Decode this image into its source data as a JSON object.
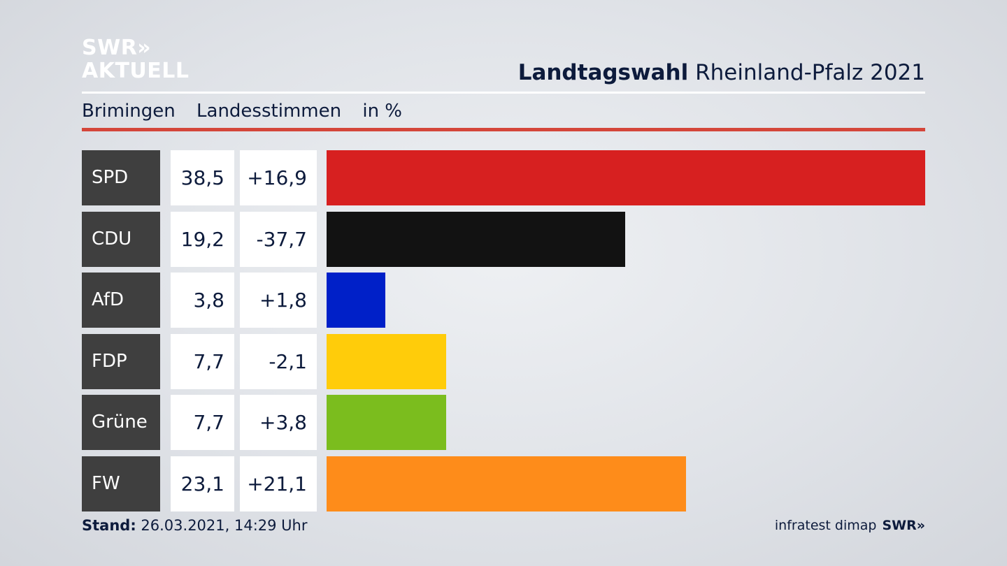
{
  "logo": {
    "line1": "SWR»",
    "line2": "AKTUELL"
  },
  "header": {
    "title_bold": "Landtagswahl",
    "title_rest": " Rheinland-Pfalz 2021"
  },
  "subheader": {
    "place": "Brimingen",
    "type": "Landesstimmen",
    "unit": "in %"
  },
  "chart_data": {
    "type": "bar",
    "orientation": "horizontal",
    "categories": [
      "SPD",
      "CDU",
      "AfD",
      "FDP",
      "Grüne",
      "FW"
    ],
    "series": [
      {
        "name": "",
        "values": [
          38.5,
          19.2,
          3.8,
          7.7,
          7.7,
          23.1
        ]
      }
    ],
    "value_labels": [
      "38,5",
      "19,2",
      "3,8",
      "7,7",
      "7,7",
      "23,1"
    ],
    "diff_labels": [
      "+16,9",
      "-37,7",
      "+1,8",
      "-2,1",
      "+3,8",
      "+21,1"
    ],
    "diffs": [
      16.9,
      -37.7,
      1.8,
      -2.1,
      3.8,
      21.1
    ],
    "colors": [
      "#d72020",
      "#121212",
      "#0020c8",
      "#ffcc0a",
      "#7bbd1e",
      "#fe8c1a"
    ],
    "xlim": [
      0,
      38.5
    ],
    "grid": false,
    "legend": "none"
  },
  "footer": {
    "stand_label": "Stand:",
    "stand_value": " 26.03.2021, 14:29 Uhr",
    "source": "infratest dimap",
    "brand": "SWR»"
  }
}
